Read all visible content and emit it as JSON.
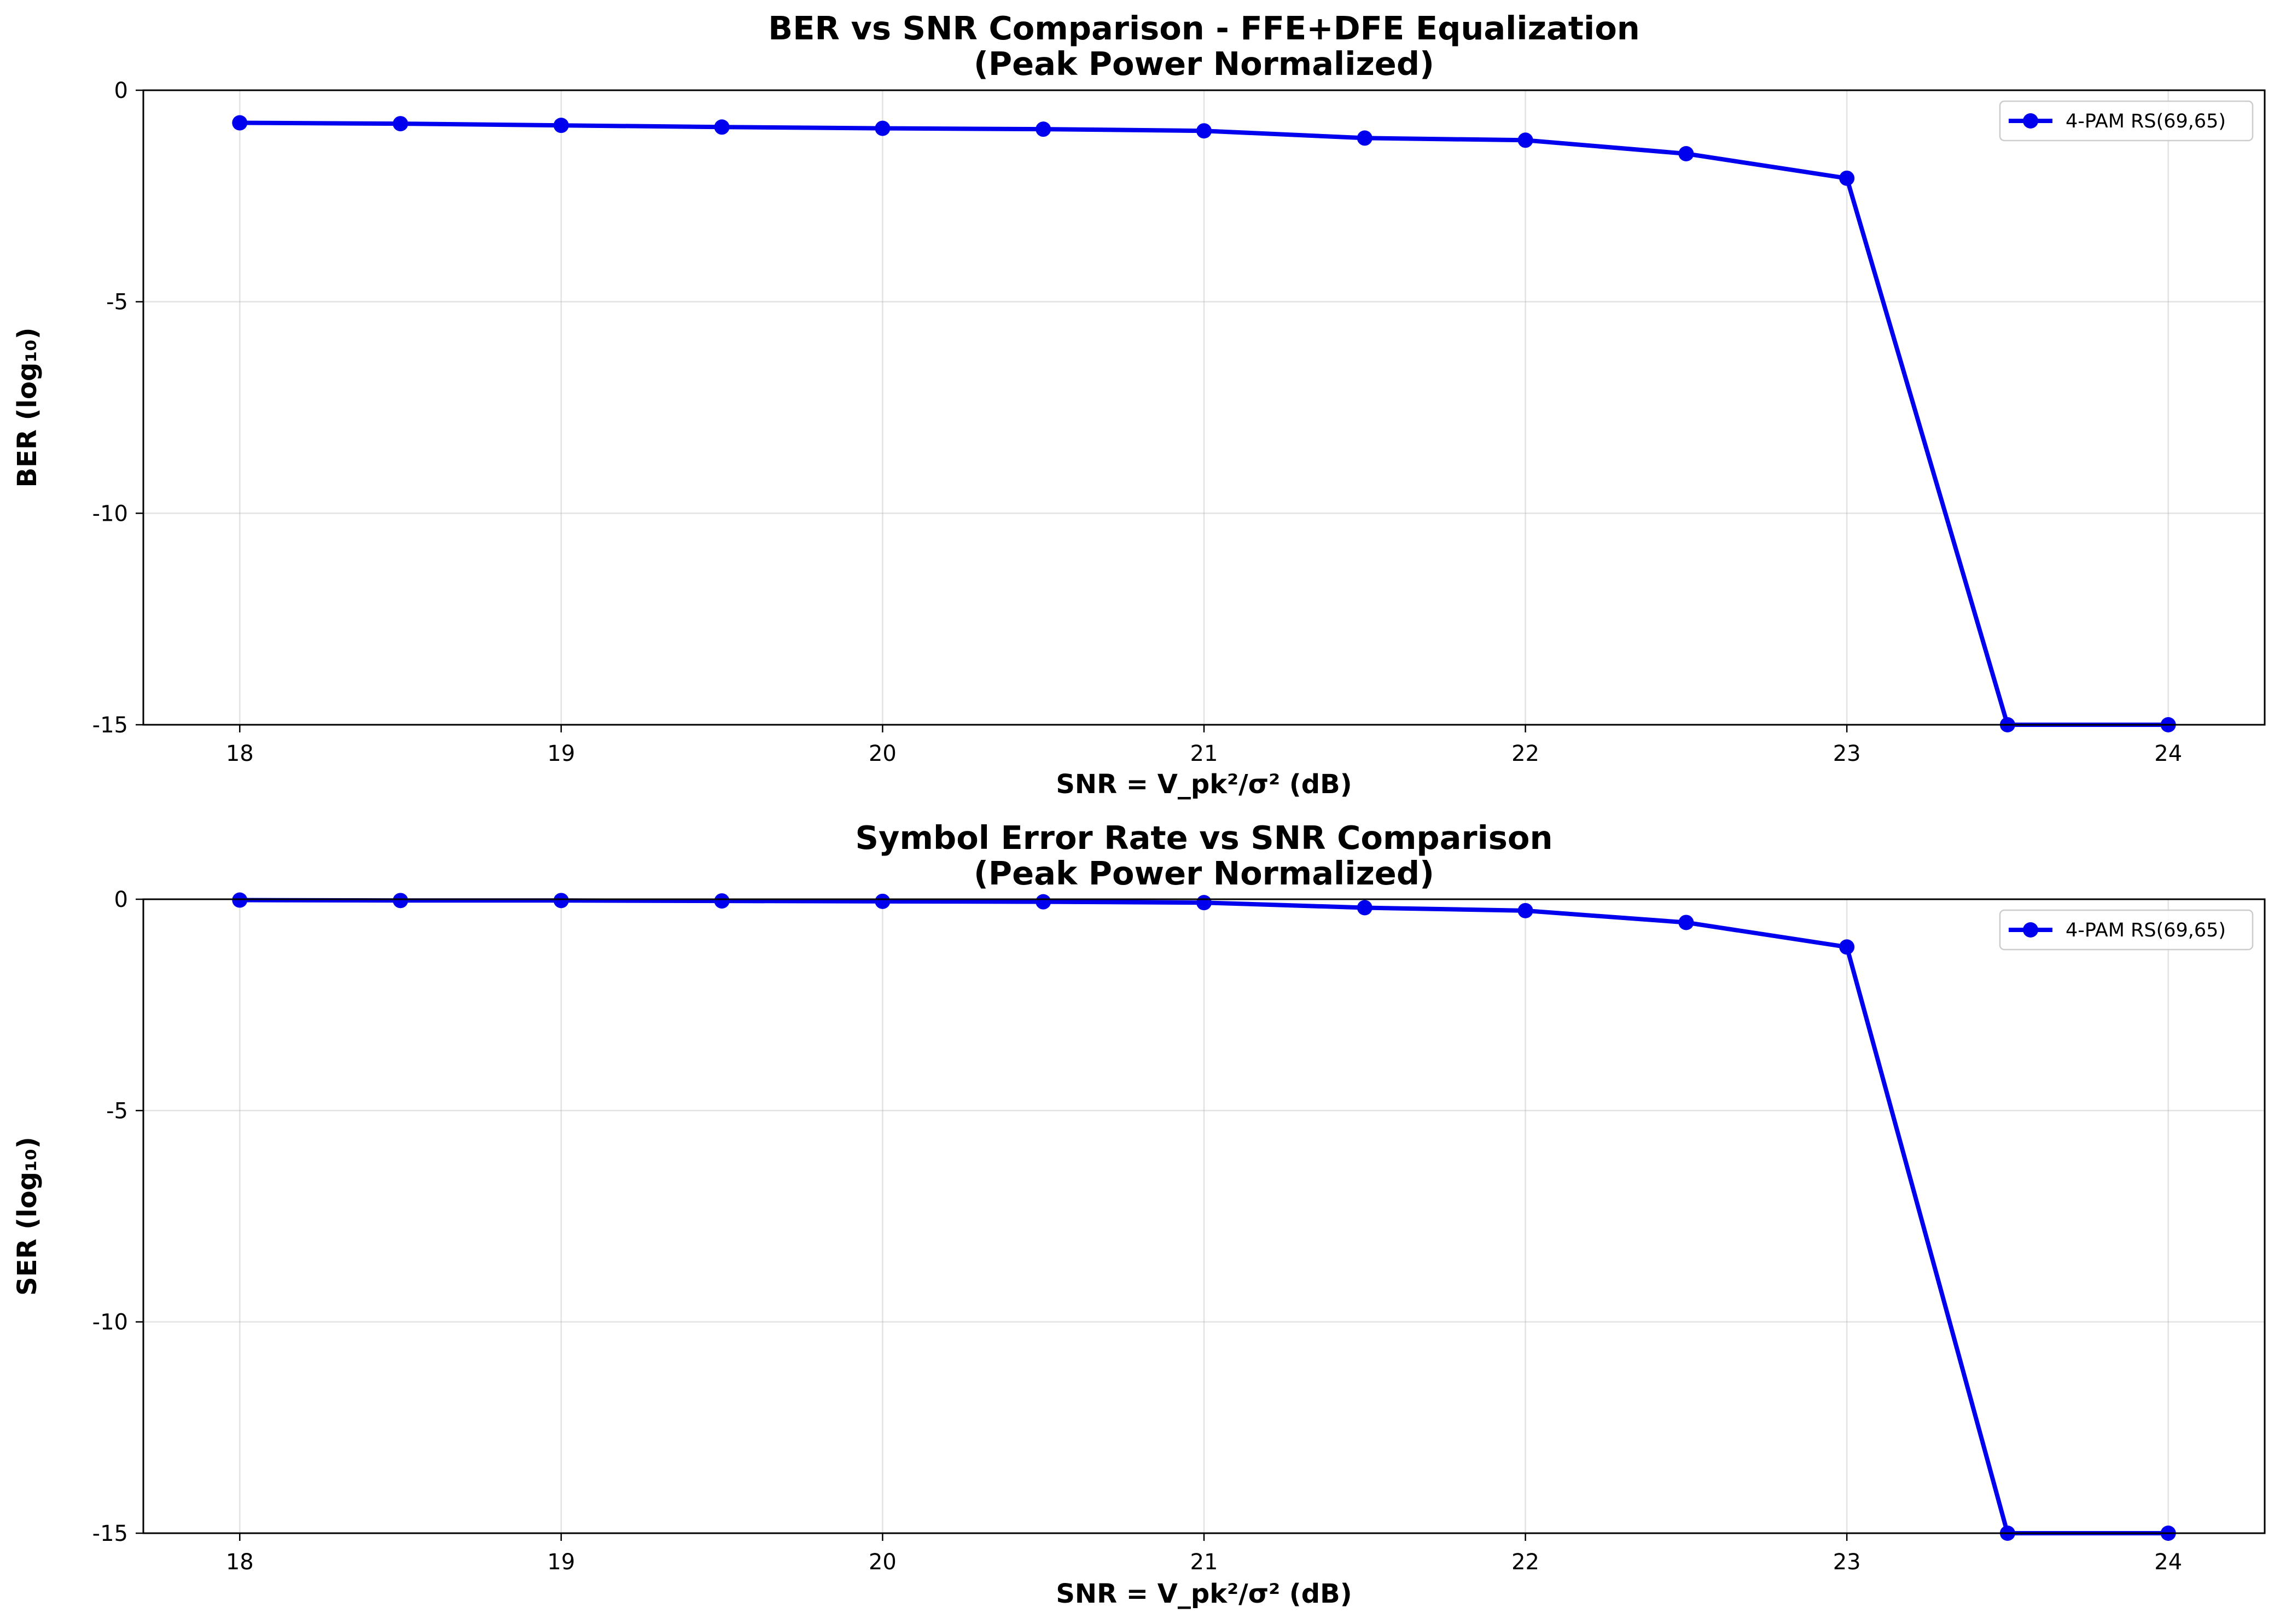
{
  "chart_data": [
    {
      "type": "line",
      "title": [
        "BER vs SNR Comparison - FFE+DFE Equalization",
        "(Peak Power Normalized)"
      ],
      "xlabel": "SNR = V_pk²/σ² (dB)",
      "ylabel": "BER (log₁₀)",
      "xlim": [
        17.7,
        24.3
      ],
      "ylim": [
        -15,
        0
      ],
      "xticks": [
        18,
        19,
        20,
        21,
        22,
        23,
        24
      ],
      "yticks": [
        0,
        -5,
        -10,
        -15
      ],
      "grid": true,
      "legend_position": "top-right",
      "series": [
        {
          "name": "4-PAM RS(69,65)",
          "color": "#0000ee",
          "marker": "circle",
          "x": [
            18,
            18.5,
            19,
            19.5,
            20,
            20.5,
            21,
            21.5,
            22,
            22.5,
            23,
            23.5,
            24
          ],
          "y": [
            -0.77,
            -0.79,
            -0.83,
            -0.87,
            -0.9,
            -0.92,
            -0.96,
            -1.13,
            -1.18,
            -1.5,
            -2.08,
            -15,
            -15
          ]
        }
      ]
    },
    {
      "type": "line",
      "title": [
        "Symbol Error Rate vs SNR Comparison",
        "(Peak Power Normalized)"
      ],
      "xlabel": "SNR = V_pk²/σ² (dB)",
      "ylabel": "SER (log₁₀)",
      "xlim": [
        17.7,
        24.3
      ],
      "ylim": [
        -15,
        0
      ],
      "xticks": [
        18,
        19,
        20,
        21,
        22,
        23,
        24
      ],
      "yticks": [
        0,
        -5,
        -10,
        -15
      ],
      "grid": true,
      "legend_position": "top-right",
      "series": [
        {
          "name": "4-PAM RS(69,65)",
          "color": "#0000ee",
          "marker": "circle",
          "x": [
            18,
            18.5,
            19,
            19.5,
            20,
            20.5,
            21,
            21.5,
            22,
            22.5,
            23,
            23.5,
            24
          ],
          "y": [
            -0.02,
            -0.03,
            -0.03,
            -0.04,
            -0.05,
            -0.06,
            -0.08,
            -0.2,
            -0.27,
            -0.55,
            -1.13,
            -15,
            -15
          ]
        }
      ]
    }
  ]
}
